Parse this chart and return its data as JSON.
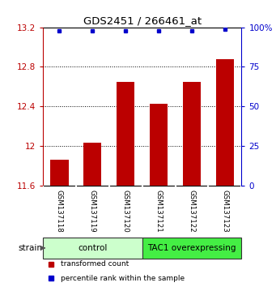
{
  "title": "GDS2451 / 266461_at",
  "samples": [
    "GSM137118",
    "GSM137119",
    "GSM137120",
    "GSM137121",
    "GSM137122",
    "GSM137123"
  ],
  "bar_values": [
    11.865,
    12.03,
    12.65,
    12.43,
    12.65,
    12.88
  ],
  "percentile_values": [
    98,
    98,
    98,
    98,
    98,
    99
  ],
  "bar_color": "#bb0000",
  "dot_color": "#0000cc",
  "ylim_left": [
    11.6,
    13.2
  ],
  "ylim_right": [
    0,
    100
  ],
  "yticks_left": [
    11.6,
    12.0,
    12.4,
    12.8,
    13.2
  ],
  "yticks_right": [
    0,
    25,
    50,
    75,
    100
  ],
  "ytick_labels_left": [
    "11.6",
    "12",
    "12.4",
    "12.8",
    "13.2"
  ],
  "ytick_labels_right": [
    "0",
    "25",
    "50",
    "75",
    "100%"
  ],
  "groups": [
    {
      "label": "control",
      "start": 0,
      "end": 2,
      "color": "#ccffcc"
    },
    {
      "label": "TAC1 overexpressing",
      "start": 3,
      "end": 5,
      "color": "#44ee44"
    }
  ],
  "legend_items": [
    {
      "color": "#bb0000",
      "label": "transformed count"
    },
    {
      "color": "#0000cc",
      "label": "percentile rank within the sample"
    }
  ],
  "bar_width": 0.55,
  "xlab_bg": "#c8c8c8",
  "xlab_div_color": "#ffffff",
  "group_border_color": "#333333"
}
